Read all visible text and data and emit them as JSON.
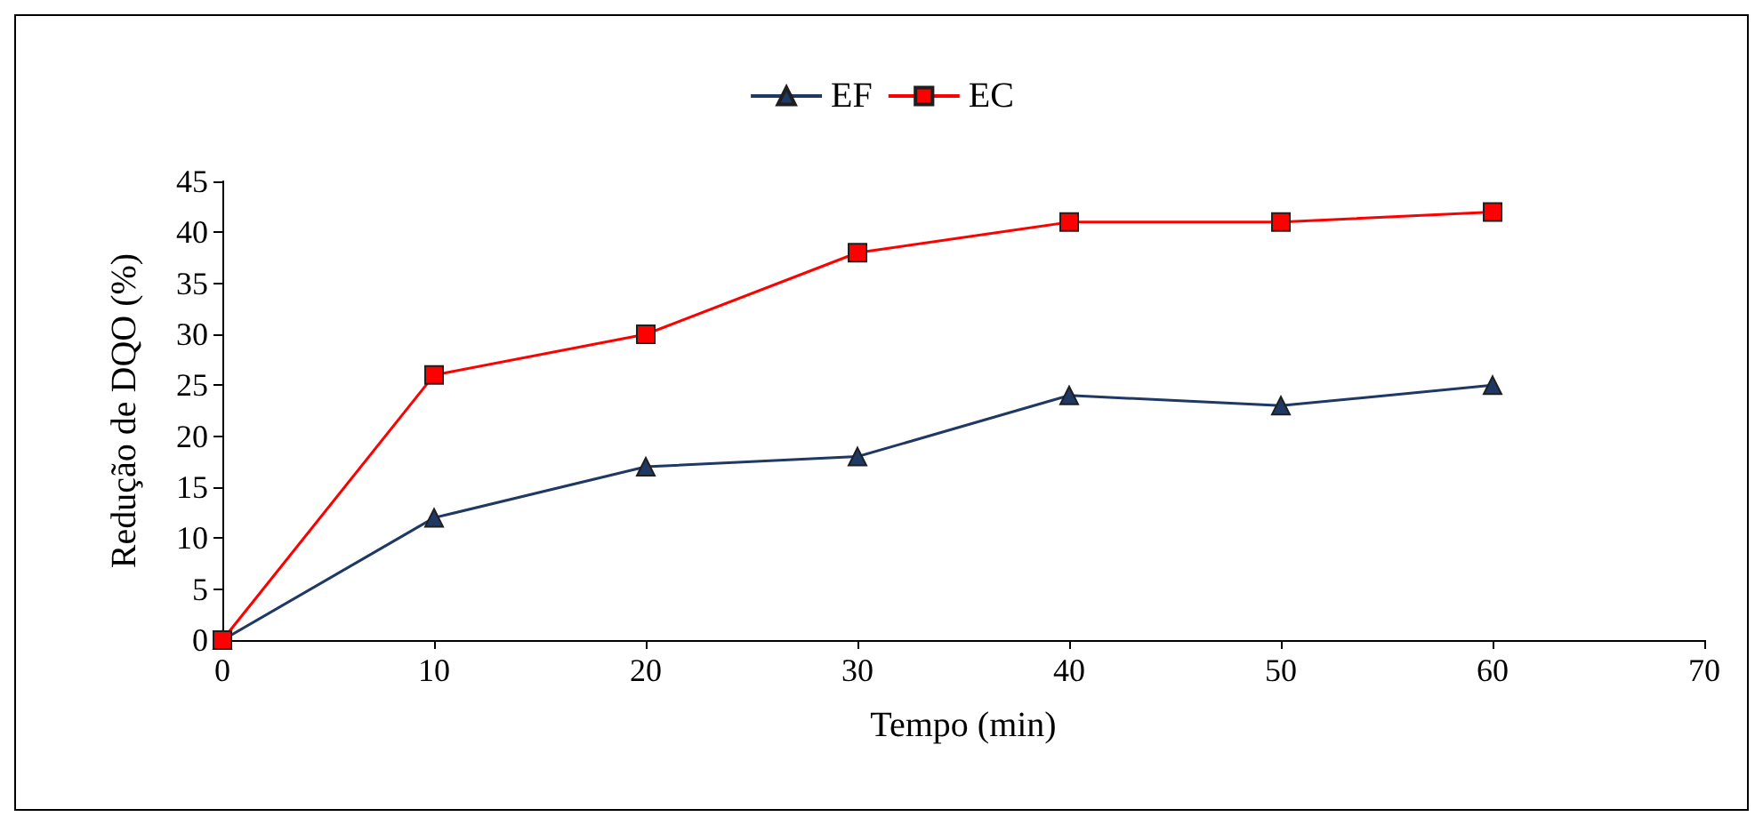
{
  "chart_data": {
    "type": "line",
    "xlabel": "Tempo (min)",
    "ylabel": "Redução de DQO (%)",
    "x": [
      0,
      10,
      20,
      30,
      40,
      50,
      60
    ],
    "series": [
      {
        "name": "EF",
        "color": "#1f3864",
        "marker": "triangle",
        "values": [
          0,
          12,
          17,
          18,
          24,
          23,
          25
        ]
      },
      {
        "name": "EC",
        "color": "#ff0000",
        "marker": "square",
        "values": [
          0,
          26,
          30,
          38,
          41,
          41,
          42
        ]
      }
    ],
    "xlim": [
      0,
      70
    ],
    "xticks": [
      0,
      10,
      20,
      30,
      40,
      50,
      60,
      70
    ],
    "ylim": [
      0,
      45
    ],
    "yticks": [
      0,
      5,
      10,
      15,
      20,
      25,
      30,
      35,
      40,
      45
    ],
    "grid": false,
    "legend": "top",
    "line_style": "solid"
  }
}
